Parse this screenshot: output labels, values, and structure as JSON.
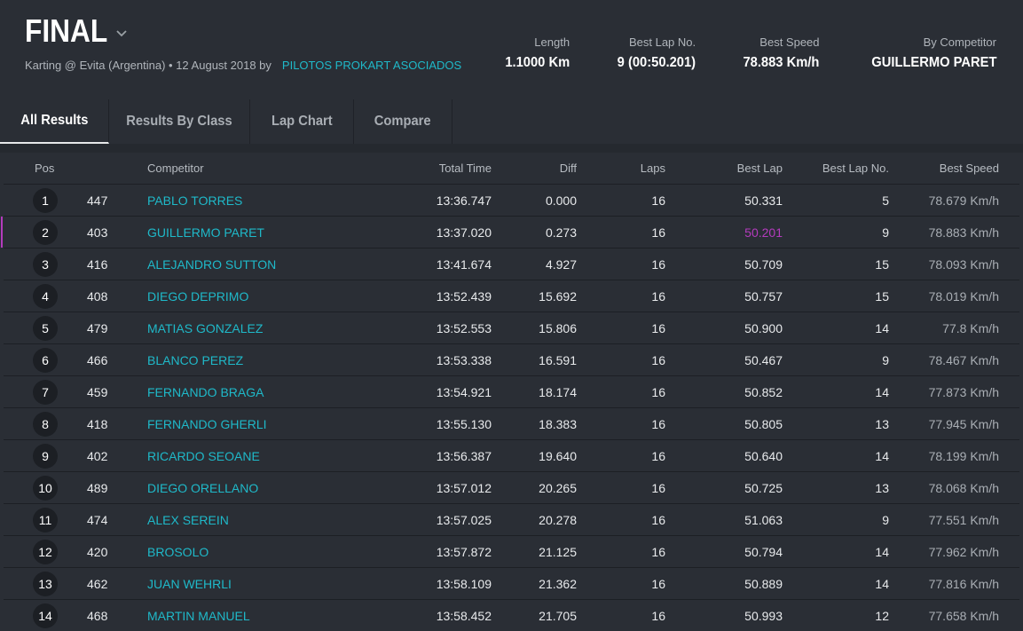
{
  "header": {
    "title": "FINAL",
    "subtitle": "Karting @ Evita (Argentina) • 12 August 2018 by",
    "organizer": "PILOTOS PROKART ASOCIADOS",
    "stats": [
      {
        "label": "Length",
        "value": "1.1000 Km"
      },
      {
        "label": "Best Lap No.",
        "value": "9 (00:50.201)"
      },
      {
        "label": "Best Speed",
        "value": "78.883 Km/h"
      },
      {
        "label": "By Competitor",
        "value": "GUILLERMO PARET"
      }
    ]
  },
  "tabs": [
    {
      "label": "All Results",
      "active": true
    },
    {
      "label": "Results By Class",
      "active": false
    },
    {
      "label": "Lap Chart",
      "active": false
    },
    {
      "label": "Compare",
      "active": false
    }
  ],
  "columns": {
    "pos": "Pos",
    "competitor": "Competitor",
    "total_time": "Total Time",
    "diff": "Diff",
    "laps": "Laps",
    "best_lap": "Best Lap",
    "best_lap_no": "Best Lap No.",
    "best_speed": "Best Speed"
  },
  "accent_colors": {
    "link": "#1fb9c9",
    "fastest": "#b43bbd"
  },
  "rows": [
    {
      "pos": "1",
      "num": "447",
      "competitor": "PABLO TORRES",
      "total": "13:36.747",
      "diff": "0.000",
      "laps": "16",
      "best": "50.331",
      "best_no": "5",
      "speed": "78.679 Km/h"
    },
    {
      "pos": "2",
      "num": "403",
      "competitor": "GUILLERMO PARET",
      "total": "13:37.020",
      "diff": "0.273",
      "laps": "16",
      "best": "50.201",
      "best_no": "9",
      "speed": "78.883 Km/h",
      "fastest": true
    },
    {
      "pos": "3",
      "num": "416",
      "competitor": "ALEJANDRO SUTTON",
      "total": "13:41.674",
      "diff": "4.927",
      "laps": "16",
      "best": "50.709",
      "best_no": "15",
      "speed": "78.093 Km/h"
    },
    {
      "pos": "4",
      "num": "408",
      "competitor": "DIEGO DEPRIMO",
      "total": "13:52.439",
      "diff": "15.692",
      "laps": "16",
      "best": "50.757",
      "best_no": "15",
      "speed": "78.019 Km/h"
    },
    {
      "pos": "5",
      "num": "479",
      "competitor": "MATIAS GONZALEZ",
      "total": "13:52.553",
      "diff": "15.806",
      "laps": "16",
      "best": "50.900",
      "best_no": "14",
      "speed": "77.8 Km/h"
    },
    {
      "pos": "6",
      "num": "466",
      "competitor": "BLANCO PEREZ",
      "total": "13:53.338",
      "diff": "16.591",
      "laps": "16",
      "best": "50.467",
      "best_no": "9",
      "speed": "78.467 Km/h"
    },
    {
      "pos": "7",
      "num": "459",
      "competitor": "FERNANDO BRAGA",
      "total": "13:54.921",
      "diff": "18.174",
      "laps": "16",
      "best": "50.852",
      "best_no": "14",
      "speed": "77.873 Km/h"
    },
    {
      "pos": "8",
      "num": "418",
      "competitor": "FERNANDO GHERLI",
      "total": "13:55.130",
      "diff": "18.383",
      "laps": "16",
      "best": "50.805",
      "best_no": "13",
      "speed": "77.945 Km/h"
    },
    {
      "pos": "9",
      "num": "402",
      "competitor": "RICARDO SEOANE",
      "total": "13:56.387",
      "diff": "19.640",
      "laps": "16",
      "best": "50.640",
      "best_no": "14",
      "speed": "78.199 Km/h"
    },
    {
      "pos": "10",
      "num": "489",
      "competitor": "DIEGO ORELLANO",
      "total": "13:57.012",
      "diff": "20.265",
      "laps": "16",
      "best": "50.725",
      "best_no": "13",
      "speed": "78.068 Km/h"
    },
    {
      "pos": "11",
      "num": "474",
      "competitor": "ALEX SEREIN",
      "total": "13:57.025",
      "diff": "20.278",
      "laps": "16",
      "best": "51.063",
      "best_no": "9",
      "speed": "77.551 Km/h"
    },
    {
      "pos": "12",
      "num": "420",
      "competitor": "BROSOLO",
      "total": "13:57.872",
      "diff": "21.125",
      "laps": "16",
      "best": "50.794",
      "best_no": "14",
      "speed": "77.962 Km/h"
    },
    {
      "pos": "13",
      "num": "462",
      "competitor": "JUAN WEHRLI",
      "total": "13:58.109",
      "diff": "21.362",
      "laps": "16",
      "best": "50.889",
      "best_no": "14",
      "speed": "77.816 Km/h"
    },
    {
      "pos": "14",
      "num": "468",
      "competitor": "MARTIN MANUEL",
      "total": "13:58.452",
      "diff": "21.705",
      "laps": "16",
      "best": "50.993",
      "best_no": "12",
      "speed": "77.658 Km/h"
    }
  ]
}
